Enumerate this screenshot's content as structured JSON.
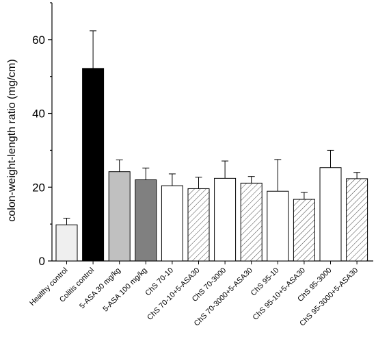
{
  "chart_data": {
    "type": "bar",
    "title": "",
    "xlabel": "",
    "ylabel": "colon-weight-length ratio (mg/cm)",
    "ylim": [
      0,
      70
    ],
    "yticks": [
      0,
      20,
      40,
      60
    ],
    "grid": false,
    "legend": "none",
    "categories": [
      "Healthy control",
      "Colitis control",
      "5-ASA 30 mg/kg",
      "5-ASA 100 mg/kg",
      "ChS 70-10",
      "ChS 70-10+5-ASA30",
      "ChS 70-3000",
      "ChS 70-3000+5-ASA30",
      "ChS 95-10",
      "ChS 95-10+5-ASA30",
      "ChS 95-3000",
      "ChS 95-3000+5-ASA30"
    ],
    "series": [
      {
        "values": [
          9.8,
          52.2,
          24.2,
          22.0,
          20.4,
          19.6,
          22.4,
          21.1,
          18.9,
          16.7,
          25.3,
          22.3
        ],
        "error": [
          1.8,
          10.2,
          3.2,
          3.2,
          3.2,
          3.1,
          4.7,
          1.8,
          8.6,
          1.9,
          4.7,
          1.7
        ]
      }
    ],
    "bar_styles": [
      "light-gray",
      "black",
      "medium-gray",
      "dark-gray",
      "white",
      "hatched",
      "white",
      "hatched",
      "white",
      "hatched",
      "white",
      "hatched"
    ],
    "colors": {
      "light-gray": "#efefef",
      "black": "#000000",
      "medium-gray": "#c0c0c0",
      "dark-gray": "#808080",
      "white": "#ffffff",
      "hatched": "#ffffff",
      "outline": "#000000"
    }
  }
}
